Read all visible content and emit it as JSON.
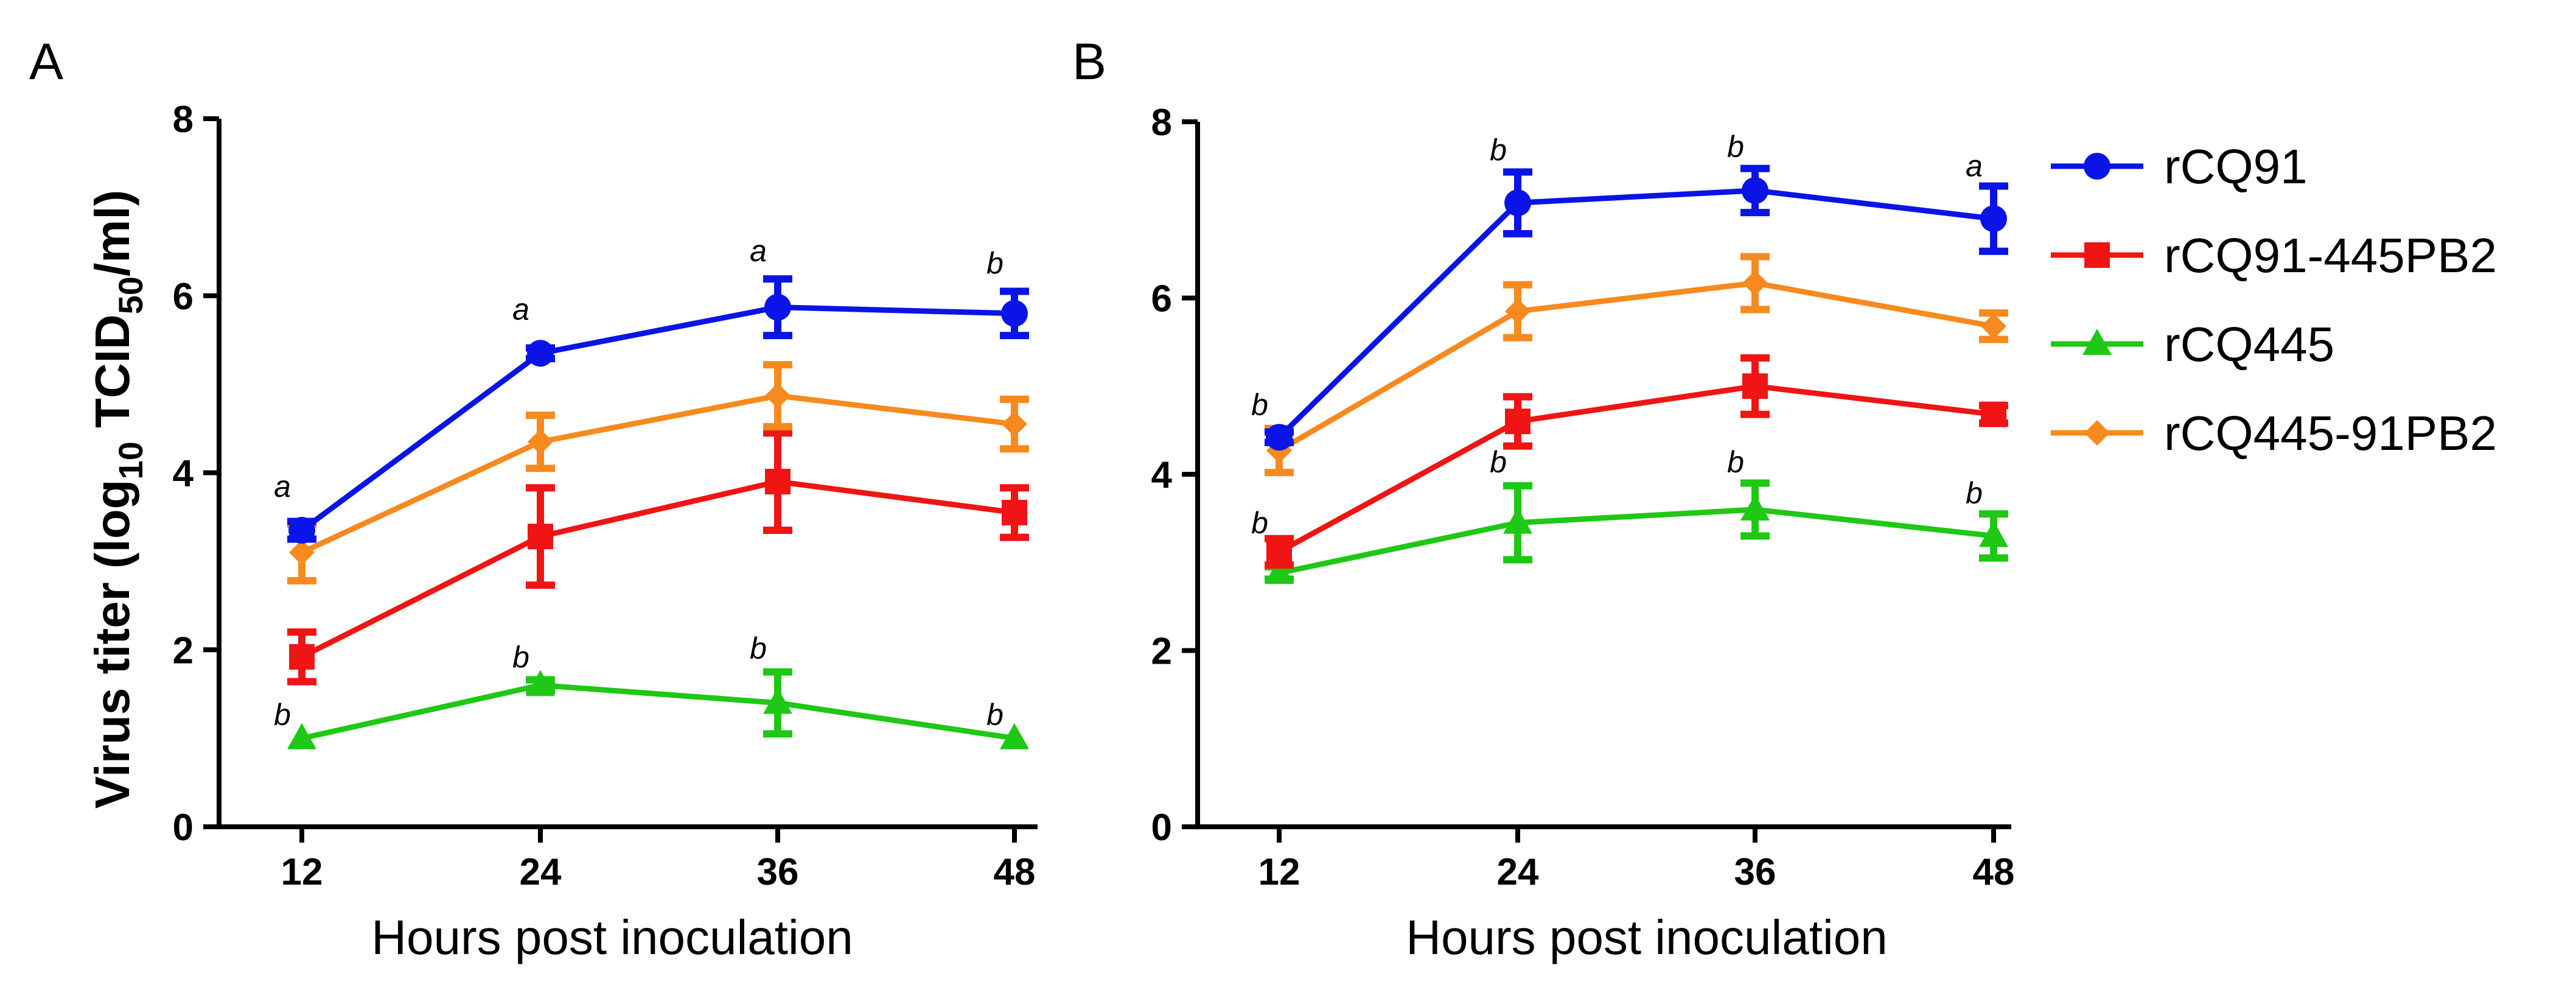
{
  "figure": {
    "panel_letters": [
      "A",
      "B"
    ],
    "x_axis_title": "Hours post inoculation",
    "y_axis_title": {
      "prefix": "Virus titer (log",
      "sub1": "10",
      "middle": " TCID",
      "sub2": "50",
      "suffix": "/ml)"
    }
  },
  "legend": {
    "placement": "right",
    "items": [
      {
        "name": "rCQ91",
        "color": "#0a14e6",
        "marker": "circle"
      },
      {
        "name": "rCQ91-445PB2",
        "color": "#f01414",
        "marker": "square"
      },
      {
        "name": "rCQ445",
        "color": "#1ec814",
        "marker": "triangle"
      },
      {
        "name": "rCQ445-91PB2",
        "color": "#f78a1e",
        "marker": "diamond"
      }
    ]
  },
  "chart_data": [
    {
      "panel": "A",
      "type": "line",
      "x": [
        12,
        24,
        36,
        48
      ],
      "xlabel": "Hours post inoculation",
      "ylabel": "Virus titer (log10 TCID50/ml)",
      "ylim": [
        0,
        8
      ],
      "yticks": [
        0,
        2,
        4,
        6,
        8
      ],
      "grid": false,
      "series": [
        {
          "name": "rCQ91",
          "values": [
            3.35,
            5.35,
            5.87,
            5.8
          ],
          "err": [
            0.1,
            0.06,
            0.32,
            0.25
          ]
        },
        {
          "name": "rCQ91-445PB2",
          "values": [
            1.92,
            3.28,
            3.9,
            3.55
          ],
          "err": [
            0.28,
            0.55,
            0.55,
            0.28
          ]
        },
        {
          "name": "rCQ445",
          "values": [
            1.0,
            1.6,
            1.4,
            1.0
          ],
          "err": [
            0.0,
            0.06,
            0.35,
            0.0
          ]
        },
        {
          "name": "rCQ445-91PB2",
          "values": [
            3.1,
            4.35,
            4.87,
            4.55
          ],
          "err": [
            0.32,
            0.3,
            0.35,
            0.28
          ]
        }
      ],
      "annotations": [
        {
          "x": 12,
          "text": "a",
          "anchor_series": "rCQ91",
          "offset": 0.38
        },
        {
          "x": 24,
          "text": "a",
          "anchor_series": "rCQ91",
          "offset": 0.38
        },
        {
          "x": 36,
          "text": "a",
          "anchor_series": "rCQ91",
          "offset": 0.52
        },
        {
          "x": 48,
          "text": "b",
          "anchor_series": "rCQ91",
          "offset": 0.45
        },
        {
          "x": 12,
          "text": "b",
          "anchor_series": "rCQ445",
          "offset": 0.15
        },
        {
          "x": 24,
          "text": "b",
          "anchor_series": "rCQ445",
          "offset": 0.2
        },
        {
          "x": 36,
          "text": "b",
          "anchor_series": "rCQ445",
          "offset": 0.5
        },
        {
          "x": 48,
          "text": "b",
          "anchor_series": "rCQ445",
          "offset": 0.15
        }
      ]
    },
    {
      "panel": "B",
      "type": "line",
      "x": [
        12,
        24,
        36,
        48
      ],
      "xlabel": "Hours post inoculation",
      "ylabel": "",
      "ylim": [
        0,
        8
      ],
      "yticks": [
        0,
        2,
        4,
        6,
        8
      ],
      "grid": false,
      "series": [
        {
          "name": "rCQ91",
          "values": [
            4.42,
            7.08,
            7.22,
            6.9
          ],
          "err": [
            0.06,
            0.35,
            0.25,
            0.37
          ]
        },
        {
          "name": "rCQ91-445PB2",
          "values": [
            3.12,
            4.6,
            5.0,
            4.68
          ],
          "err": [
            0.15,
            0.28,
            0.32,
            0.1
          ]
        },
        {
          "name": "rCQ445",
          "values": [
            2.88,
            3.45,
            3.6,
            3.3
          ],
          "err": [
            0.07,
            0.42,
            0.3,
            0.25
          ]
        },
        {
          "name": "rCQ445-91PB2",
          "values": [
            4.27,
            5.85,
            6.17,
            5.68
          ],
          "err": [
            0.25,
            0.3,
            0.3,
            0.15
          ]
        }
      ],
      "annotations": [
        {
          "x": 12,
          "text": "b",
          "anchor_series": "rCQ91",
          "offset": 0.25
        },
        {
          "x": 24,
          "text": "b",
          "anchor_series": "rCQ91",
          "offset": 0.48
        },
        {
          "x": 36,
          "text": "b",
          "anchor_series": "rCQ91",
          "offset": 0.38
        },
        {
          "x": 48,
          "text": "a",
          "anchor_series": "rCQ91",
          "offset": 0.48
        },
        {
          "x": 12,
          "text": "b",
          "anchor_series": "rCQ445",
          "offset": 0.45
        },
        {
          "x": 24,
          "text": "b",
          "anchor_series": "rCQ445",
          "offset": 0.57
        },
        {
          "x": 36,
          "text": "b",
          "anchor_series": "rCQ445",
          "offset": 0.42
        },
        {
          "x": 48,
          "text": "b",
          "anchor_series": "rCQ445",
          "offset": 0.37
        }
      ]
    }
  ]
}
